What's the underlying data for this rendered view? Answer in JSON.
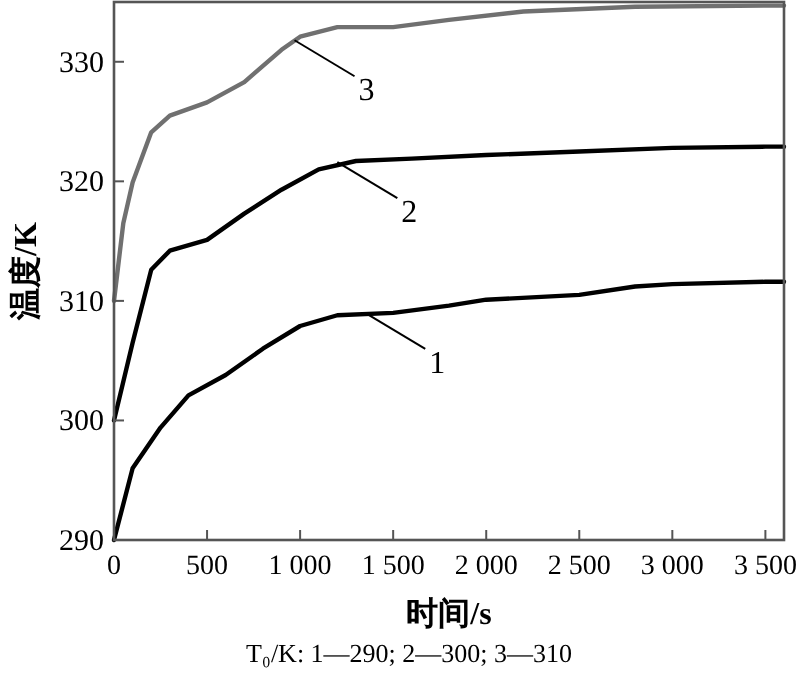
{
  "chart_data": {
    "type": "line",
    "xlabel": "时间/s",
    "ylabel": "温度/K",
    "annotations": [
      {
        "text": "1",
        "x": 1350,
        "y": 309.0
      },
      {
        "text": "2",
        "x": 1200,
        "y": 321.6
      },
      {
        "text": "3",
        "x": 970,
        "y": 331.8
      },
      "T₀/K: 1—290; 2—300; 3—310"
    ],
    "xlim": [
      0,
      3600
    ],
    "ylim": [
      290,
      335
    ],
    "xticks": [
      0,
      500,
      {
        "value": 1000,
        "label": "1 000"
      },
      {
        "value": 1500,
        "label": "1 500"
      },
      {
        "value": 2000,
        "label": "2 000"
      },
      {
        "value": 2500,
        "label": "2 500"
      },
      {
        "value": 3000,
        "label": "3 000"
      },
      {
        "value": 3500,
        "label": "3 500"
      }
    ],
    "yticks": [
      290,
      300,
      310,
      320,
      330
    ],
    "grid": false,
    "marker": "none",
    "line_style": "solid",
    "series": [
      {
        "color": "#000000",
        "x": [
          0,
          100,
          250,
          400,
          600,
          800,
          1000,
          1200,
          1500,
          1800,
          2000,
          2500,
          2800,
          3000,
          3500,
          3600
        ],
        "values": [
          290,
          296,
          299.4,
          302.1,
          303.8,
          306,
          307.9,
          308.8,
          309.0,
          309.6,
          310.1,
          310.5,
          311.2,
          311.4,
          311.6,
          311.6
        ]
      },
      {
        "color": "#000000",
        "x": [
          0,
          100,
          200,
          300,
          500,
          700,
          900,
          1100,
          1300,
          1600,
          2000,
          2500,
          3000,
          3500,
          3600
        ],
        "values": [
          300,
          306.5,
          312.6,
          314.2,
          315.1,
          317.3,
          319.3,
          321.0,
          321.7,
          321.9,
          322.2,
          322.5,
          322.8,
          322.9,
          322.9
        ]
      },
      {
        "color": "#707070",
        "x": [
          0,
          50,
          100,
          200,
          300,
          500,
          700,
          900,
          1000,
          1200,
          1500,
          1800,
          2200,
          2800,
          3500,
          3600
        ],
        "values": [
          310,
          316.5,
          319.9,
          324.1,
          325.5,
          326.6,
          328.3,
          331.0,
          332.1,
          332.9,
          332.9,
          333.5,
          334.2,
          334.6,
          334.7,
          334.7
        ]
      }
    ]
  }
}
